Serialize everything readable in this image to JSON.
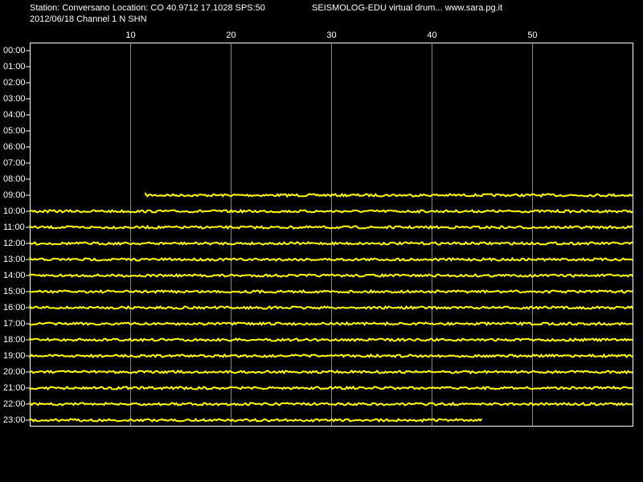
{
  "chart_data": {
    "type": "helicorder",
    "title": "Station: Conversano Location: CO 40.9712 17.1028 SPS:50",
    "subtitle": "2012/06/18  Channel 1 N SHN",
    "header_right": "SEISMOLOG-EDU virtual drum... www.sara.pg.it",
    "categories": [
      "00:00",
      "01:00",
      "02:00",
      "03:00",
      "04:00",
      "05:00",
      "06:00",
      "07:00",
      "08:00",
      "09:00",
      "10:00",
      "11:00",
      "12:00",
      "13:00",
      "14:00",
      "15:00",
      "16:00",
      "17:00",
      "18:00",
      "19:00",
      "20:00",
      "21:00",
      "22:00",
      "23:00"
    ],
    "trace_start": [
      null,
      null,
      null,
      null,
      null,
      null,
      null,
      null,
      null,
      11.5,
      0,
      0,
      0,
      0,
      0,
      0,
      0,
      0,
      0,
      0,
      0,
      0,
      0,
      0
    ],
    "trace_end": [
      null,
      null,
      null,
      null,
      null,
      null,
      null,
      null,
      null,
      60,
      60,
      60,
      60,
      60,
      60,
      60,
      60,
      60,
      60,
      60,
      60,
      60,
      60,
      45
    ],
    "color": "#ffff00",
    "xlim": [
      0,
      60
    ],
    "xticks": [
      10,
      20,
      30,
      40,
      50
    ],
    "grid": true
  }
}
